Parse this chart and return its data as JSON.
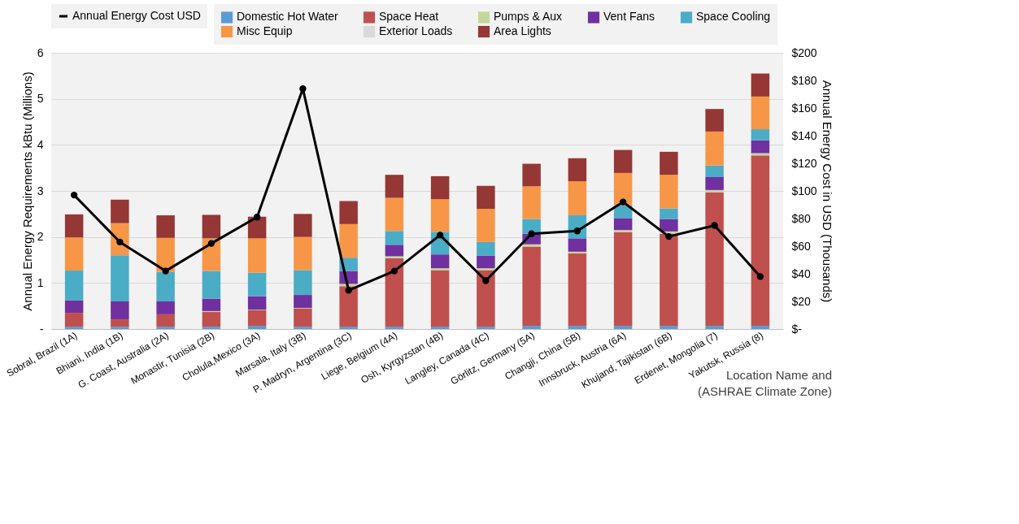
{
  "chart_data": {
    "type": "bar",
    "stacked": true,
    "xlabel": "Location Name and (ASHRAE Climate Zone)",
    "ylabel": "Annual Energy Requirements kBtu (Millions)",
    "y2label": "Annual Energy Cost in USD (Thousands)",
    "categories": [
      "Sobral, Brazil (1A)",
      "Bhiani, India (1B)",
      "G. Coast, Australia (2A)",
      "Monastir, Tunisia (2B)",
      "Cholula,Mexico (3A)",
      "Marsala, Italy (3B)",
      "P. Madryn, Argentina (3C)",
      "Liege, Belgium (4A)",
      "Osh, Kyrgyzstan (4B)",
      "Langley, Canada (4C)",
      "Görlitz, Germany (5A)",
      "Changji, China (5B)",
      "Innsbruck, Austria (6A)",
      "Khujand, Tajikistan (6B)",
      "Erdenet, Mongolia (7)",
      "Yakutsk, Russia (8)"
    ],
    "series": [
      {
        "name": "Domestic Hot Water",
        "color": "#5b9bd5",
        "values": [
          0.05,
          0.05,
          0.05,
          0.05,
          0.07,
          0.05,
          0.05,
          0.05,
          0.05,
          0.05,
          0.07,
          0.07,
          0.07,
          0.07,
          0.07,
          0.07
        ]
      },
      {
        "name": "Space Heat",
        "color": "#c0504d",
        "values": [
          0.3,
          0.16,
          0.27,
          0.32,
          0.34,
          0.4,
          0.88,
          1.49,
          1.23,
          1.23,
          1.72,
          1.57,
          2.03,
          2.0,
          2.9,
          3.7
        ]
      },
      {
        "name": "Pumps & Aux",
        "color": "#c4d79b",
        "values": [
          null,
          null,
          null,
          0.02,
          0.01,
          0.01,
          0.05,
          0.04,
          0.04,
          0.04,
          0.05,
          0.04,
          0.05,
          0.05,
          0.05,
          0.05
        ]
      },
      {
        "name": "Vent Fans",
        "color": "#7030a0",
        "values": [
          0.27,
          0.39,
          0.28,
          0.27,
          0.29,
          0.28,
          0.28,
          0.25,
          0.3,
          0.27,
          0.23,
          0.29,
          0.26,
          0.27,
          0.28,
          0.28
        ]
      },
      {
        "name": "Space Cooling",
        "color": "#4bacc6",
        "values": [
          0.65,
          1.0,
          0.64,
          0.6,
          0.51,
          0.54,
          0.29,
          0.3,
          0.49,
          0.3,
          0.32,
          0.5,
          0.28,
          0.23,
          0.25,
          0.24
        ]
      },
      {
        "name": "Misc Equip",
        "color": "#f79646",
        "values": [
          0.72,
          0.7,
          0.74,
          0.71,
          0.75,
          0.72,
          0.73,
          0.72,
          0.71,
          0.72,
          0.71,
          0.74,
          0.7,
          0.73,
          0.74,
          0.71
        ]
      },
      {
        "name": "Exterior Loads",
        "color": "#d9d9d9",
        "values": [
          0,
          0,
          0,
          0,
          0,
          0,
          0,
          0,
          0,
          0,
          0,
          0,
          0,
          0,
          0,
          0
        ]
      },
      {
        "name": "Area Lights",
        "color": "#953735",
        "values": [
          0.5,
          0.51,
          0.49,
          0.51,
          0.47,
          0.5,
          0.5,
          0.5,
          0.5,
          0.5,
          0.49,
          0.5,
          0.5,
          0.5,
          0.49,
          0.5
        ]
      },
      {
        "name": "Annual Energy Cost USD",
        "type": "line",
        "axis": "y2",
        "color": "#000000",
        "marker": "circle",
        "values": [
          97,
          63,
          42,
          62,
          81,
          174,
          28,
          42,
          68,
          35,
          69,
          71,
          92,
          67,
          75,
          38
        ]
      }
    ],
    "ylim": [
      0,
      6
    ],
    "yticks": [
      {
        "value": 0,
        "label": "-"
      },
      1,
      2,
      3,
      4,
      5,
      6
    ],
    "y2lim": [
      0,
      200
    ],
    "y2ticks": [
      {
        "value": 0,
        "label": "$-"
      },
      {
        "value": 20,
        "label": "$20"
      },
      {
        "value": 40,
        "label": "$40"
      },
      {
        "value": 60,
        "label": "$60"
      },
      {
        "value": 80,
        "label": "$80"
      },
      {
        "value": 100,
        "label": "$100"
      },
      {
        "value": 120,
        "label": "$120"
      },
      {
        "value": 140,
        "label": "$140"
      },
      {
        "value": 160,
        "label": "$160"
      },
      {
        "value": 180,
        "label": "$180"
      },
      {
        "value": 200,
        "label": "$200"
      }
    ],
    "grid": "y",
    "legend": "top"
  }
}
